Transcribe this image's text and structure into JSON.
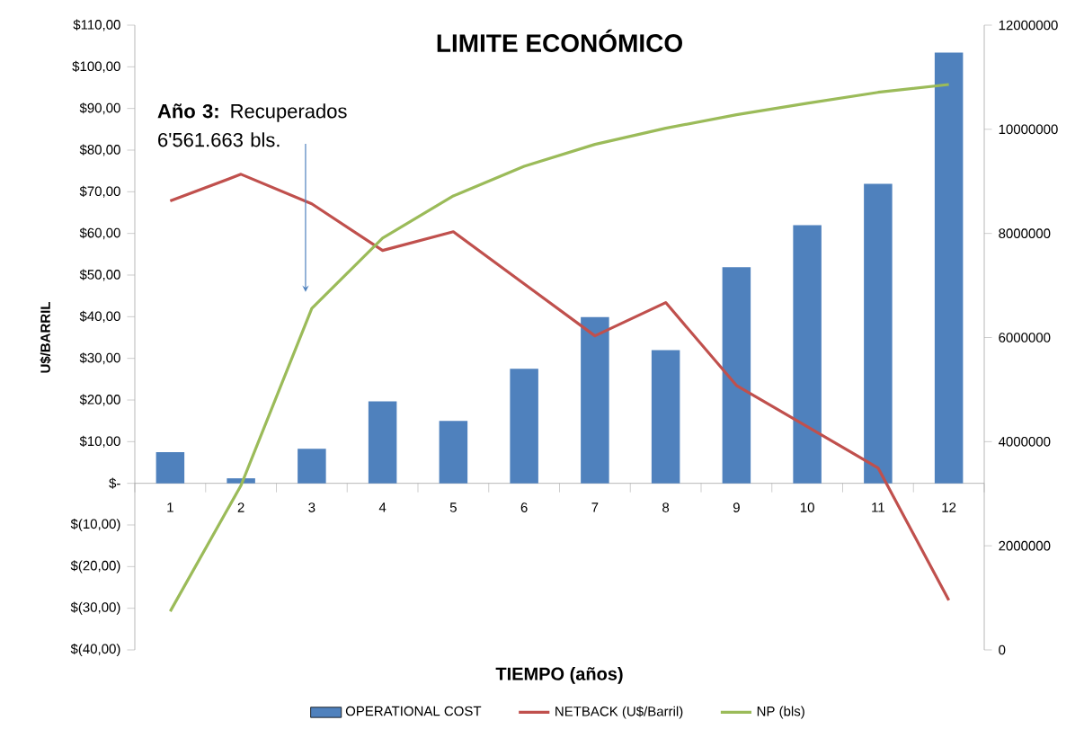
{
  "chart_data": {
    "type": "bar",
    "title": "LIMITE ECONÓMICO",
    "xlabel": "TIEMPO (años)",
    "ylabel": "U$/BARRIL",
    "categories": [
      "1",
      "2",
      "3",
      "4",
      "5",
      "6",
      "7",
      "8",
      "9",
      "10",
      "11",
      "12"
    ],
    "series": [
      {
        "name": "OPERATIONAL COST",
        "color": "#4f81bd",
        "values": [
          7.5,
          1.2,
          8.3,
          19.7,
          15.0,
          27.5,
          39.9,
          32.0,
          51.9,
          62.0,
          71.9,
          103.4
        ]
      },
      {
        "name": "NETBACK (U$/Barril)",
        "type": "line",
        "color": "#c0504d",
        "values": [
          67.8,
          74.2,
          67.1,
          55.9,
          60.4,
          47.9,
          35.4,
          43.4,
          23.5,
          13.6,
          3.7,
          -28.1
        ]
      },
      {
        "name": "NP (bls)",
        "type": "line",
        "axis": "y2",
        "color": "#9bbb59",
        "values": [
          740000,
          3160000,
          6560000,
          7910000,
          8720000,
          9290000,
          9710000,
          10020000,
          10280000,
          10500000,
          10710000,
          10860000
        ]
      }
    ],
    "ylim": [
      -40,
      110
    ],
    "yticks": [
      {
        "value": -40,
        "label": "$(40,00)"
      },
      {
        "value": -30,
        "label": "$(30,00)"
      },
      {
        "value": -20,
        "label": "$(20,00)"
      },
      {
        "value": -10,
        "label": "$(10,00)"
      },
      {
        "value": 0,
        "label": "$-"
      },
      {
        "value": 10,
        "label": "$10,00"
      },
      {
        "value": 20,
        "label": "$20,00"
      },
      {
        "value": 30,
        "label": "$30,00"
      },
      {
        "value": 40,
        "label": "$40,00"
      },
      {
        "value": 50,
        "label": "$50,00"
      },
      {
        "value": 60,
        "label": "$60,00"
      },
      {
        "value": 70,
        "label": "$70,00"
      },
      {
        "value": 80,
        "label": "$80,00"
      },
      {
        "value": 90,
        "label": "$90,00"
      },
      {
        "value": 100,
        "label": "$100,00"
      },
      {
        "value": 110,
        "label": "$110,00"
      }
    ],
    "y2lim": [
      0,
      12000000
    ],
    "y2ticks": [
      0,
      2000000,
      4000000,
      6000000,
      8000000,
      10000000,
      12000000
    ],
    "legend": "bottom",
    "annotations": [
      "**Año 3:** Recuperados 6'561.663 bls."
    ]
  }
}
